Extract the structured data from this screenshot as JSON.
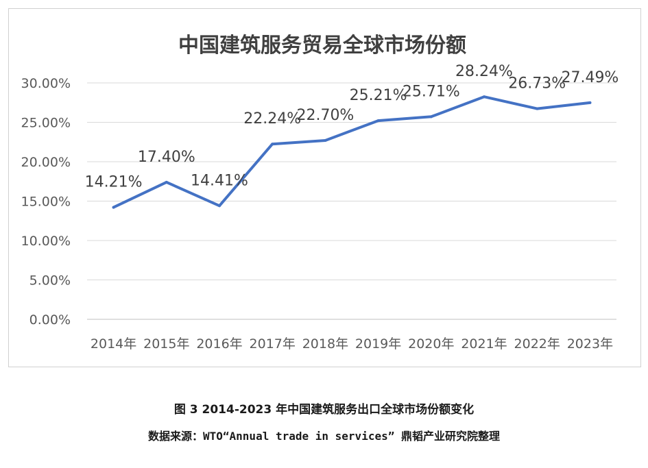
{
  "chart_data": {
    "type": "line",
    "title": "中国建筑服务贸易全球市场份额",
    "categories": [
      "2014年",
      "2015年",
      "2016年",
      "2017年",
      "2018年",
      "2019年",
      "2020年",
      "2021年",
      "2022年",
      "2023年"
    ],
    "values": [
      14.21,
      17.4,
      14.41,
      22.24,
      22.7,
      25.21,
      25.71,
      28.24,
      26.73,
      27.49
    ],
    "data_labels": [
      "14.21%",
      "17.40%",
      "14.41%",
      "22.24%",
      "22.70%",
      "25.21%",
      "25.71%",
      "28.24%",
      "26.73%",
      "27.49%"
    ],
    "y_ticks": [
      "0.00%",
      "5.00%",
      "10.00%",
      "15.00%",
      "20.00%",
      "25.00%",
      "30.00%"
    ],
    "ylim": [
      0,
      30
    ],
    "grid": true,
    "line_color": "#4472c4"
  },
  "caption": {
    "figure": "图 3 2014-2023 年中国建筑服务出口全球市场份额变化",
    "source": "数据来源：WTO“Annual trade in services” 鼎韬产业研究院整理"
  }
}
